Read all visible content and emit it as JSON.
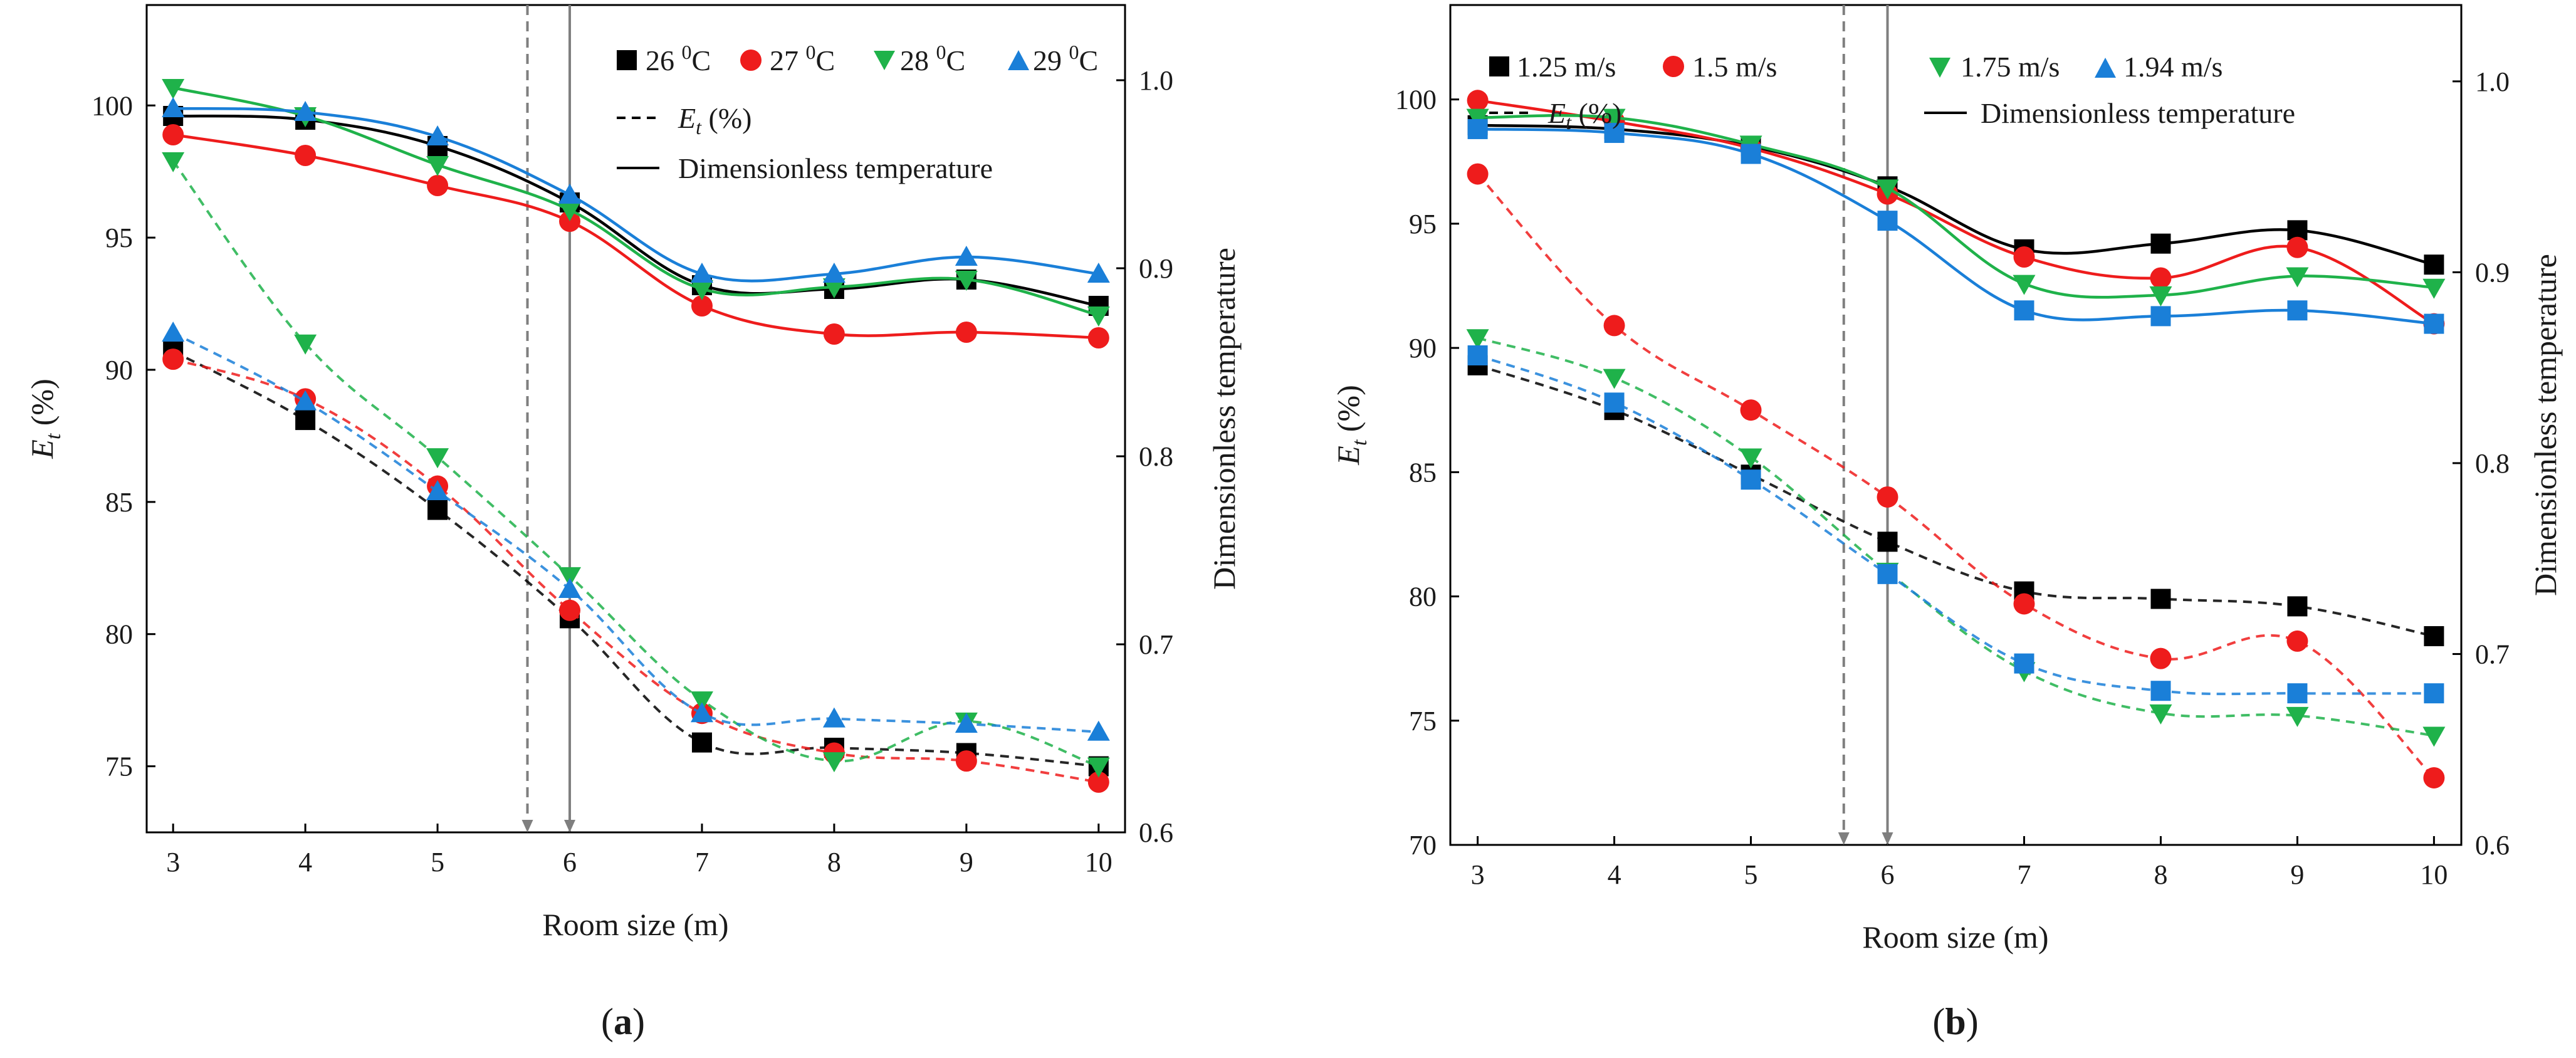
{
  "figure": {
    "panels": [
      "(a)",
      "(b)"
    ]
  },
  "colors": {
    "black": "#000000",
    "red": "#ee1c1c",
    "green": "#1fb24a",
    "blue": "#1a7fd8",
    "guide": "#7f7f7f"
  },
  "chart_data": [
    {
      "type": "line",
      "panel_label": "(a)",
      "xlabel": "Room size (m)",
      "ylabel_main": "E",
      "ylabel_sub": "t",
      "ylabel_rest": " (%)",
      "y2label": "Dimensionless temperature",
      "x_ticks": [
        "3",
        "4",
        "5",
        "6",
        "7",
        "8",
        "9",
        "10"
      ],
      "y_ticks": [
        "75",
        "80",
        "85",
        "90",
        "95",
        "100"
      ],
      "y2_ticks": [
        "0.6",
        "0.7",
        "0.8",
        "0.9",
        "1.0"
      ],
      "xlim": [
        2.8,
        10.2
      ],
      "ylim": [
        72.5,
        103.8
      ],
      "y2lim": [
        0.6,
        1.04
      ],
      "vlines": [
        5.68,
        6.0
      ],
      "legend": {
        "series_names": [
          "26 ⁰C",
          "27 ⁰C",
          "28 ⁰C",
          "29 ⁰C"
        ],
        "series_names_base": [
          "26 ",
          "27 ",
          "28 ",
          "29 "
        ],
        "series_names_sup": [
          "0",
          "0",
          "0",
          "0"
        ],
        "series_names_unit": [
          "C",
          "C",
          "C",
          "C"
        ],
        "dashed_label_main": "E",
        "dashed_label_sub": "t",
        "dashed_label_rest": " (%)",
        "solid_label": "Dimensionless temperature"
      },
      "x": [
        3,
        4,
        5,
        6,
        7,
        8,
        9,
        10
      ],
      "series": [
        {
          "name": "26 ⁰C",
          "color": "black",
          "marker": "square",
          "efficiency": [
            90.7,
            88.1,
            84.7,
            80.6,
            75.9,
            75.7,
            75.5,
            75.0
          ],
          "dimensionless": [
            0.981,
            0.979,
            0.965,
            0.935,
            0.891,
            0.889,
            0.894,
            0.88
          ]
        },
        {
          "name": "27 ⁰C",
          "color": "red",
          "marker": "circle",
          "efficiency": [
            90.4,
            88.9,
            85.6,
            80.9,
            77.0,
            75.5,
            75.2,
            74.4
          ],
          "dimensionless": [
            0.971,
            0.96,
            0.944,
            0.925,
            0.88,
            0.865,
            0.866,
            0.863
          ]
        },
        {
          "name": "28 ⁰C",
          "color": "green",
          "marker": "triangle-down",
          "efficiency": [
            97.9,
            91.0,
            86.7,
            82.2,
            77.5,
            75.2,
            76.7,
            75.0
          ],
          "dimensionless": [
            0.996,
            0.981,
            0.955,
            0.931,
            0.889,
            0.89,
            0.894,
            0.875
          ]
        },
        {
          "name": "29 ⁰C",
          "color": "blue",
          "marker": "triangle-up",
          "efficiency": [
            91.4,
            88.8,
            85.4,
            81.7,
            77.0,
            76.8,
            76.6,
            76.3
          ],
          "dimensionless": [
            0.985,
            0.983,
            0.97,
            0.939,
            0.897,
            0.897,
            0.906,
            0.897
          ]
        }
      ]
    },
    {
      "type": "line",
      "panel_label": "(b)",
      "xlabel": "Room size (m)",
      "ylabel_main": "E",
      "ylabel_sub": "t",
      "ylabel_rest": " (%)",
      "y2label": "Dimensionless temperature",
      "x_ticks": [
        "3",
        "4",
        "5",
        "6",
        "7",
        "8",
        "9",
        "10"
      ],
      "y_ticks": [
        "70",
        "75",
        "80",
        "85",
        "90",
        "95",
        "100"
      ],
      "y2_ticks": [
        "0.6",
        "0.7",
        "0.8",
        "0.9",
        "1.0"
      ],
      "xlim": [
        2.8,
        10.2
      ],
      "ylim": [
        70,
        103.8
      ],
      "y2lim": [
        0.6,
        1.04
      ],
      "vlines": [
        5.68,
        6.0
      ],
      "legend": {
        "series_names": [
          "1.25 m/s",
          "1.5 m/s",
          "1.75 m/s",
          "1.94 m/s"
        ],
        "dashed_label_main": "E",
        "dashed_label_sub": "t",
        "dashed_label_rest": " (%)",
        "solid_label": "Dimensionless temperature"
      },
      "x": [
        3,
        4,
        5,
        6,
        7,
        8,
        9,
        10
      ],
      "series": [
        {
          "name": "1.25 m/s",
          "color": "black",
          "marker": "square",
          "efficiency": [
            89.3,
            87.5,
            84.9,
            82.2,
            80.2,
            79.9,
            79.6,
            78.4
          ],
          "dimensionless": [
            0.977,
            0.975,
            0.966,
            0.945,
            0.912,
            0.915,
            0.922,
            0.904
          ]
        },
        {
          "name": "1.5 m/s",
          "color": "red",
          "marker": "circle",
          "efficiency": [
            97.0,
            90.9,
            87.5,
            84.0,
            79.7,
            77.5,
            78.2,
            72.7
          ],
          "dimensionless": [
            0.99,
            0.979,
            0.965,
            0.941,
            0.908,
            0.897,
            0.913,
            0.873
          ]
        },
        {
          "name": "1.75 m/s",
          "color": "green",
          "marker": "triangle-down",
          "efficiency": [
            90.4,
            88.8,
            85.6,
            81.0,
            77.0,
            75.3,
            75.2,
            74.4
          ],
          "dimensionless": [
            0.981,
            0.981,
            0.967,
            0.944,
            0.894,
            0.888,
            0.898,
            0.892
          ]
        },
        {
          "name": "1.94 m/s",
          "color": "blue",
          "marker": "square",
          "efficiency": [
            89.7,
            87.8,
            84.7,
            80.9,
            77.3,
            76.2,
            76.1,
            76.1
          ],
          "dimensionless": [
            0.975,
            0.973,
            0.962,
            0.927,
            0.88,
            0.877,
            0.88,
            0.873
          ]
        }
      ]
    }
  ]
}
